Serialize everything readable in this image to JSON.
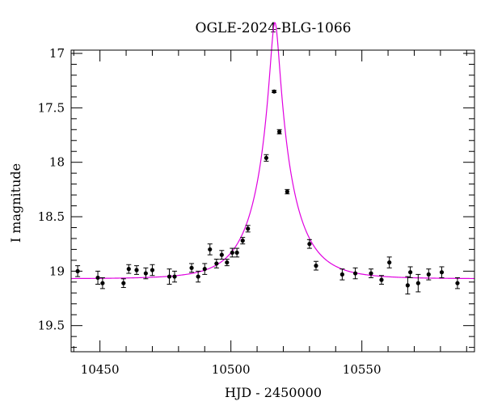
{
  "chart_data": {
    "type": "scatter",
    "title": "OGLE-2024-BLG-1066",
    "xlabel": "HJD - 2450000",
    "ylabel": "I magnitude",
    "xlim": [
      10439,
      10593
    ],
    "ylim": [
      19.74,
      16.97
    ],
    "y_inverted": true,
    "grid": false,
    "x_major_ticks": [
      10450,
      10500,
      10550
    ],
    "x_minor_step": 10,
    "y_major_ticks": [
      17,
      17.5,
      18,
      18.5,
      19,
      19.5
    ],
    "y_minor_step": 0.1,
    "x_tick_labels": [
      "10450",
      "10500",
      "10550"
    ],
    "y_tick_labels": [
      "17",
      "17.5",
      "18",
      "18.5",
      "19",
      "19.5"
    ],
    "colors": {
      "data": "#000000",
      "model": "#e000e0"
    },
    "series": [
      {
        "type": "scatter",
        "x": [
          10441.5,
          10449.2,
          10451.0,
          10459.0,
          10461.0,
          10464.0,
          10467.5,
          10470.0,
          10476.5,
          10478.5,
          10485.0,
          10487.5,
          10490.0,
          10492.0,
          10494.5,
          10496.5,
          10498.5,
          10500.5,
          10502.3,
          10504.5,
          10506.5,
          10513.5,
          10516.5,
          10518.5,
          10521.5,
          10530.0,
          10532.5,
          10542.5,
          10547.5,
          10553.5,
          10557.5,
          10560.5,
          10567.5,
          10568.5,
          10571.5,
          10575.5,
          10580.5,
          10586.5
        ],
        "y": [
          19.0,
          19.06,
          19.11,
          19.11,
          18.98,
          18.99,
          19.02,
          18.99,
          19.05,
          19.05,
          18.97,
          19.05,
          18.98,
          18.8,
          18.93,
          18.85,
          18.92,
          18.83,
          18.83,
          18.72,
          18.61,
          17.96,
          17.35,
          17.72,
          18.27,
          18.75,
          18.95,
          19.03,
          19.02,
          19.02,
          19.08,
          18.92,
          19.13,
          19.01,
          19.11,
          19.03,
          19.01,
          19.11
        ],
        "err": [
          0.05,
          0.06,
          0.05,
          0.04,
          0.04,
          0.04,
          0.05,
          0.05,
          0.07,
          0.05,
          0.04,
          0.05,
          0.05,
          0.05,
          0.04,
          0.04,
          0.03,
          0.04,
          0.04,
          0.03,
          0.03,
          0.03,
          0.01,
          0.02,
          0.02,
          0.04,
          0.04,
          0.05,
          0.05,
          0.04,
          0.04,
          0.05,
          0.08,
          0.05,
          0.08,
          0.05,
          0.05,
          0.05
        ]
      },
      {
        "type": "line",
        "model": {
          "t0": 10516.8,
          "u0": 0.115,
          "tE": 14.5,
          "baseline_mag": 19.07
        }
      }
    ]
  }
}
